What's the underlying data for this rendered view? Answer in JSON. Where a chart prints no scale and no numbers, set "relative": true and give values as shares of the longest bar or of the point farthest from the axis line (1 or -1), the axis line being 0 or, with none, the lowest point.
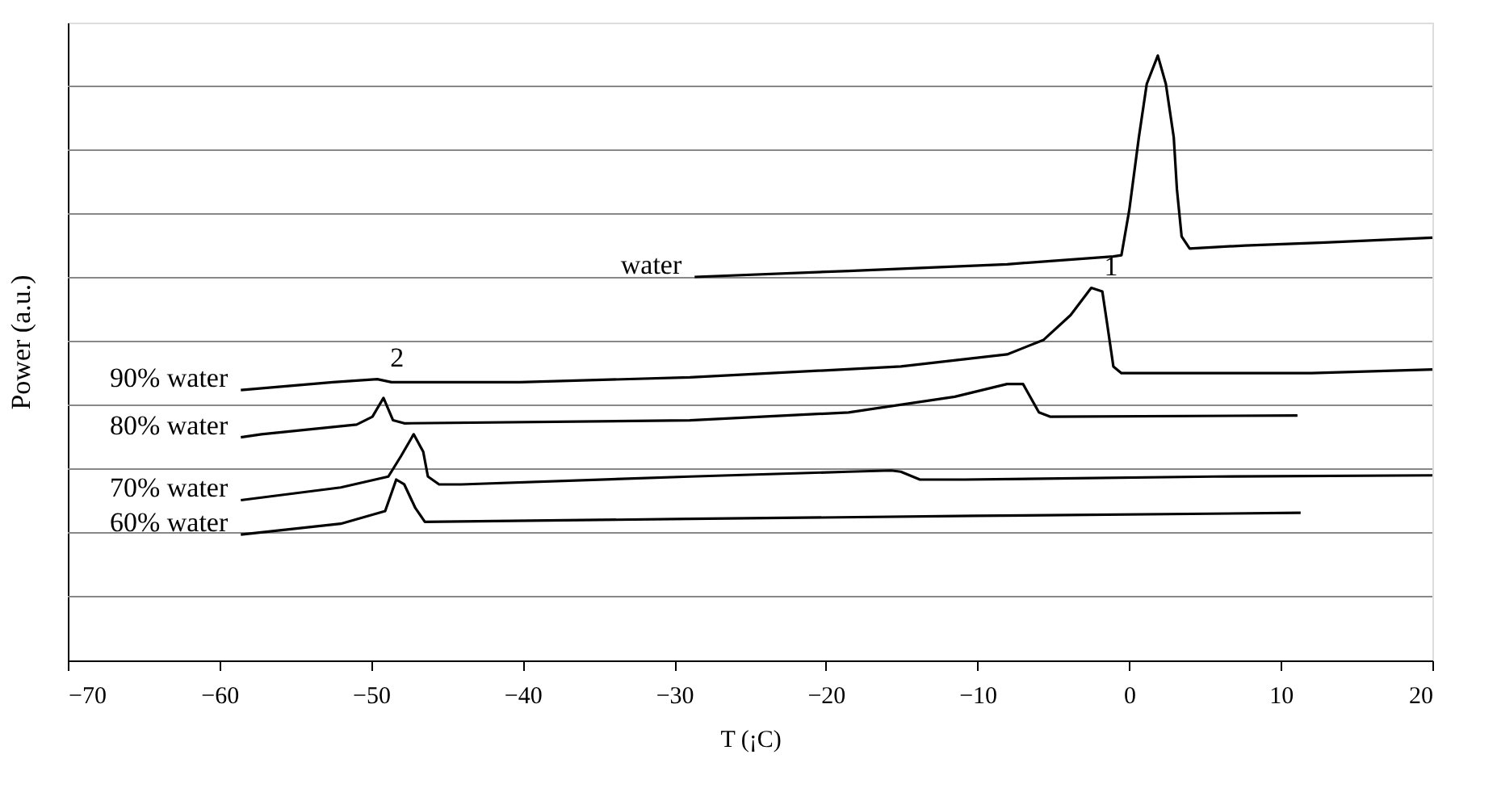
{
  "chart_data": {
    "type": "line",
    "relative": true,
    "xlabel": "T (¡C)",
    "ylabel": "Power (a.u.)",
    "xlim": [
      -70,
      20
    ],
    "xticks": [
      -70,
      -60,
      -50,
      -40,
      -30,
      -20,
      -10,
      0,
      10,
      20
    ],
    "grid": "y",
    "legend": false,
    "marker": "none",
    "line_style": "solid",
    "annotations": [
      {
        "text": "1",
        "x": -2.5,
        "y": 0.616
      },
      {
        "text": "2",
        "x": -49.59,
        "y": 0.465
      }
    ],
    "series": [
      {
        "name": "water",
        "color": "#000000",
        "x": [
          -28.66,
          -18.5,
          -8.05,
          -1.04,
          -0.51,
          0.01,
          0.64,
          1.16,
          1.89,
          2.42,
          2.94,
          3.15,
          3.46,
          3.99,
          7.65,
          12.9,
          20.0
        ],
        "values": [
          0.634,
          0.644,
          0.655,
          0.668,
          0.67,
          0.745,
          0.865,
          0.953,
          1.0,
          0.953,
          0.865,
          0.779,
          0.701,
          0.681,
          0.686,
          0.691,
          0.699
        ]
      },
      {
        "name": "90% water",
        "color": "#000000",
        "x": [
          -58.59,
          -52.52,
          -49.59,
          -48.65,
          -40.18,
          -28.98,
          -15.06,
          -8.05,
          -5.64,
          -3.86,
          -2.5,
          -1.77,
          -1.46,
          -1.04,
          -0.51,
          12.04,
          20.0
        ],
        "values": [
          0.447,
          0.46,
          0.465,
          0.46,
          0.46,
          0.468,
          0.486,
          0.506,
          0.53,
          0.571,
          0.616,
          0.61,
          0.558,
          0.486,
          0.475,
          0.475,
          0.481
        ]
      },
      {
        "name": "80% water",
        "color": "#000000",
        "x": [
          -58.59,
          -57.23,
          -50.95,
          -49.91,
          -49.18,
          -48.55,
          -47.81,
          -28.98,
          -18.51,
          -11.5,
          -8.05,
          -7.0,
          -5.95,
          -5.22,
          11.1
        ],
        "values": [
          0.369,
          0.374,
          0.39,
          0.403,
          0.434,
          0.397,
          0.392,
          0.397,
          0.41,
          0.436,
          0.457,
          0.457,
          0.41,
          0.403,
          0.405
        ]
      },
      {
        "name": "70% water",
        "color": "#000000",
        "x": [
          -58.59,
          -52.0,
          -48.86,
          -48.02,
          -47.19,
          -46.56,
          -46.25,
          -45.51,
          -44.05,
          -28.98,
          -18.51,
          -15.69,
          -15.06,
          -13.8,
          -10.87,
          5.56,
          20.0
        ],
        "values": [
          0.265,
          0.286,
          0.304,
          0.338,
          0.374,
          0.345,
          0.304,
          0.291,
          0.291,
          0.304,
          0.312,
          0.314,
          0.312,
          0.299,
          0.299,
          0.304,
          0.306
        ]
      },
      {
        "name": "60% water",
        "color": "#000000",
        "x": [
          -58.59,
          -52.0,
          -49.07,
          -48.34,
          -47.81,
          -47.08,
          -46.45,
          -28.98,
          -10.14,
          11.31
        ],
        "values": [
          0.208,
          0.226,
          0.247,
          0.299,
          0.291,
          0.252,
          0.229,
          0.234,
          0.239,
          0.244
        ]
      }
    ]
  }
}
